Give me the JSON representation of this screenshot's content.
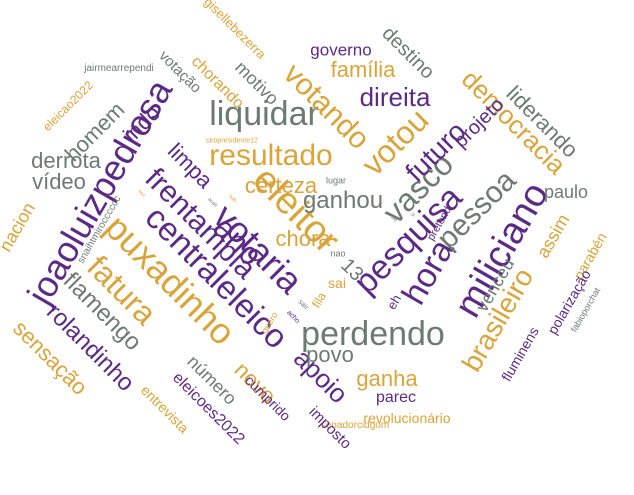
{
  "colors": {
    "purple": "#5b2a86",
    "gold": "#d9a43a",
    "gray": "#6d7a73"
  },
  "words": [
    "liquidar",
    "resultado",
    "eleitor",
    "votaria",
    "centraleleico",
    "ano",
    "puxadinho",
    "fatura",
    "joaoluizpedrosa",
    "frentampla",
    "perdendo",
    "pesquisa",
    "miliciano",
    "hora",
    "vasco",
    "pessoa",
    "votou",
    "futuro",
    "votando",
    "direita",
    "família",
    "democracia",
    "brasileiro",
    "ganhou",
    "certeza",
    "chora",
    "apoio",
    "novo",
    "povo",
    "ganha",
    "flamengo",
    "rolandinho",
    "sensação",
    "derrota",
    "vídeo",
    "homem",
    "indo",
    "limpa",
    "projeto",
    "liderando",
    "destino",
    "governo",
    "motivo",
    "chorando",
    "votação",
    "gisellebezerra",
    "jairmearrependi",
    "eleicao2022",
    "nacion",
    "snaihtmirocccccc",
    "paulo",
    "venceu",
    "assim",
    "parabén",
    "polarização",
    "fabioporchat",
    "fluminens",
    "parec",
    "revolucionário",
    "senadorcidgom",
    "imposto",
    "cumprido",
    "número",
    "eleicoes2022",
    "entrevista",
    "13",
    "sai",
    "nao",
    "fila",
    "eh",
    "pretend",
    "lugar",
    "ciropresidente12",
    "quero",
    "acho",
    "sair",
    "d",
    "ir",
    "sé",
    "nub",
    "acab",
    "liso"
  ]
}
